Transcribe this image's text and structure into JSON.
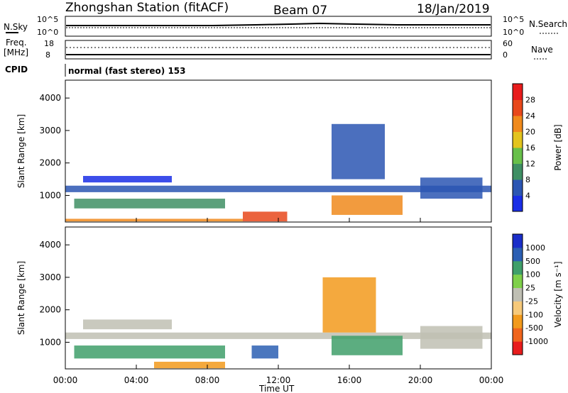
{
  "header": {
    "station": "Zhongshan Station (fitACF)",
    "beam": "Beam 07",
    "date": "18/Jan/2019"
  },
  "aux": {
    "nsky": {
      "label": "N.Sky",
      "ticks": [
        "10^5",
        "10^0"
      ]
    },
    "nsearch": {
      "label": "N.Search",
      "ticks": [
        "10^5",
        "10^0"
      ]
    },
    "freq": {
      "label": "Freq.",
      "unit": "[MHz]",
      "ticks": [
        "18",
        "8"
      ]
    },
    "nave": {
      "label": "Nave",
      "ticks": [
        "60",
        "0"
      ]
    },
    "cpid": {
      "label": "CPID",
      "text": "normal (fast stereo) 153"
    }
  },
  "colors": {
    "power": [
      "#1a2ee6",
      "#2c56b3",
      "#3f8f64",
      "#68c04a",
      "#e3c41e",
      "#f08a1c",
      "#e8481b",
      "#e81c1c"
    ],
    "velocity": [
      "#e81c1c",
      "#f0651c",
      "#f29a1c",
      "#f6c97a",
      "#bfbfb3",
      "#7fd04a",
      "#3f9f6a",
      "#2c5fb3",
      "#1a2ec9"
    ]
  },
  "chart_data": [
    {
      "type": "heatmap",
      "name": "Power",
      "xlabel": "",
      "ylabel": "Slant Range [km]",
      "x_ticks": [
        "00:00",
        "04:00",
        "08:00",
        "12:00",
        "16:00",
        "20:00",
        "00:00"
      ],
      "y_ticks": [
        4000,
        3000,
        2000,
        1000
      ],
      "xlim_hours": [
        0,
        24
      ],
      "ylim_km": [
        180,
        4550
      ],
      "colorbar": {
        "label": "Power [dB]",
        "ticks": [
          28,
          24,
          20,
          16,
          12,
          8,
          4
        ]
      },
      "bands": [
        {
          "t": [
            0,
            10
          ],
          "r": [
            200,
            280
          ],
          "level": 5
        },
        {
          "t": [
            10,
            12.5
          ],
          "r": [
            200,
            500
          ],
          "level": 6
        },
        {
          "t": [
            15,
            19
          ],
          "r": [
            400,
            1000
          ],
          "level": 5
        },
        {
          "t": [
            0.5,
            9
          ],
          "r": [
            600,
            900
          ],
          "level": 2
        },
        {
          "t": [
            0,
            24
          ],
          "r": [
            1100,
            1300
          ],
          "level": 1
        },
        {
          "t": [
            1,
            6
          ],
          "r": [
            1400,
            1600
          ],
          "level": 0
        },
        {
          "t": [
            15,
            18
          ],
          "r": [
            1500,
            3200
          ],
          "level": 1
        },
        {
          "t": [
            20,
            23.5
          ],
          "r": [
            900,
            1550
          ],
          "level": 1
        }
      ]
    },
    {
      "type": "heatmap",
      "name": "Velocity",
      "xlabel": "Time UT",
      "ylabel": "Slant Range [km]",
      "x_ticks": [
        "00:00",
        "04:00",
        "08:00",
        "12:00",
        "16:00",
        "20:00",
        "00:00"
      ],
      "y_ticks": [
        4000,
        3000,
        2000,
        1000
      ],
      "xlim_hours": [
        0,
        24
      ],
      "ylim_km": [
        180,
        4550
      ],
      "colorbar": {
        "label": "Velocity [m s⁻¹]",
        "ticks": [
          1000,
          500,
          100,
          25,
          -25,
          -100,
          -500,
          -1000
        ]
      },
      "bands": [
        {
          "t": [
            0,
            24
          ],
          "r": [
            1100,
            1300
          ],
          "level": 4
        },
        {
          "t": [
            1,
            6
          ],
          "r": [
            1400,
            1700
          ],
          "level": 4
        },
        {
          "t": [
            0.5,
            9
          ],
          "r": [
            500,
            900
          ],
          "level": 6
        },
        {
          "t": [
            10.5,
            12
          ],
          "r": [
            500,
            900
          ],
          "level": 7
        },
        {
          "t": [
            15,
            19
          ],
          "r": [
            600,
            1200
          ],
          "level": 6
        },
        {
          "t": [
            14.5,
            17.5
          ],
          "r": [
            1300,
            3000
          ],
          "level": 2
        },
        {
          "t": [
            5,
            9
          ],
          "r": [
            200,
            400
          ],
          "level": 2
        },
        {
          "t": [
            20,
            23.5
          ],
          "r": [
            800,
            1500
          ],
          "level": 4
        }
      ]
    }
  ]
}
